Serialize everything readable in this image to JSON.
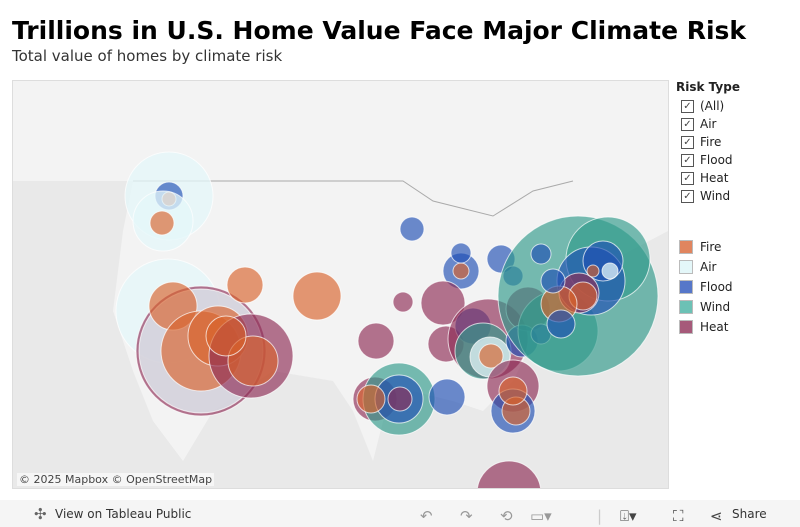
{
  "header": {
    "title": "Trillions in U.S. Home Value Face Major Climate Risk",
    "subtitle": "Total value of homes by climate risk"
  },
  "map": {
    "attribution": "© 2025 Mapbox  © OpenStreetMap"
  },
  "filter": {
    "title": "Risk Type",
    "items": [
      {
        "label": "(All)",
        "checked": true
      },
      {
        "label": "Air",
        "checked": true
      },
      {
        "label": "Fire",
        "checked": true
      },
      {
        "label": "Flood",
        "checked": true
      },
      {
        "label": "Heat",
        "checked": true
      },
      {
        "label": "Wind",
        "checked": true
      }
    ]
  },
  "color_legend": [
    {
      "label": "Fire",
      "color": "#e0855f"
    },
    {
      "label": "Air",
      "color": "#e4f7f9"
    },
    {
      "label": "Flood",
      "color": "#5677c9"
    },
    {
      "label": "Wind",
      "color": "#6cc1b5"
    },
    {
      "label": "Heat",
      "color": "#a65a7a"
    }
  ],
  "footer": {
    "view_label": "View on Tableau Public",
    "share_label": "Share",
    "icons": [
      "tableau-logo-icon",
      "undo-icon",
      "redo-icon",
      "revert-icon",
      "refresh-icon",
      "download-icon",
      "fullscreen-icon",
      "share-icon"
    ]
  }
}
